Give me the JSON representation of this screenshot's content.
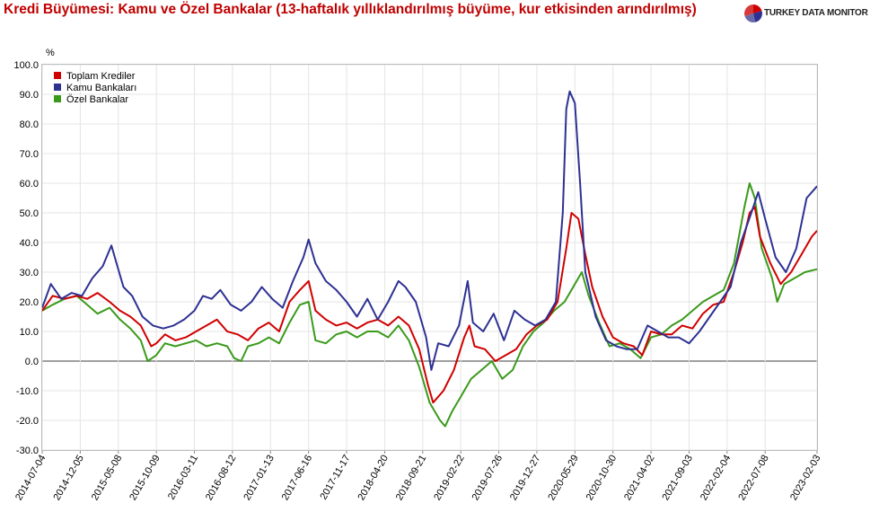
{
  "title": "Kredi Büyümesi: Kamu ve Özel Bankalar (13-haftalık yıllıklandırılmış büyüme, kur etkisinden arındırılmış)",
  "brand": "TURKEY DATA MONITOR",
  "colors": {
    "title": "#c00000",
    "toplam": "#d00000",
    "kamu": "#2e3192",
    "ozel": "#3a9a1a"
  },
  "chart_data": {
    "type": "line",
    "ylabel": "%",
    "ylim": [
      -30,
      100
    ],
    "yticks": [
      "100.0",
      "90.0",
      "80.0",
      "70.0",
      "60.0",
      "50.0",
      "40.0",
      "30.0",
      "20.0",
      "10.0",
      "0.0",
      "-10.0",
      "-20.0",
      "-30.0"
    ],
    "xticks": [
      "2014-07-04",
      "2014-12-05",
      "2015-05-08",
      "2015-10-09",
      "2016-03-11",
      "2016-08-12",
      "2017-01-13",
      "2017-06-16",
      "2017-11-17",
      "2018-04-20",
      "2018-09-21",
      "2019-02-22",
      "2019-07-26",
      "2019-12-27",
      "2020-05-29",
      "2020-10-30",
      "2021-04-02",
      "2021-09-03",
      "2022-02-04",
      "2022-07-08",
      "2023-02-03"
    ],
    "xrange": [
      "2014-07-04",
      "2023-02-03"
    ],
    "legend_position": "top-left",
    "grid": true,
    "series": [
      {
        "name": "Toplam Krediler",
        "color": "#d00000",
        "points": [
          [
            "2014-07-04",
            17
          ],
          [
            "2014-08-15",
            22
          ],
          [
            "2014-10-03",
            21
          ],
          [
            "2014-11-21",
            22
          ],
          [
            "2015-01-02",
            21
          ],
          [
            "2015-02-13",
            23
          ],
          [
            "2015-04-03",
            20
          ],
          [
            "2015-05-15",
            17
          ],
          [
            "2015-06-26",
            15
          ],
          [
            "2015-08-07",
            12
          ],
          [
            "2015-09-18",
            5
          ],
          [
            "2015-10-09",
            6
          ],
          [
            "2015-11-13",
            9
          ],
          [
            "2015-12-25",
            7
          ],
          [
            "2016-02-05",
            8
          ],
          [
            "2016-03-18",
            10
          ],
          [
            "2016-04-29",
            12
          ],
          [
            "2016-06-10",
            14
          ],
          [
            "2016-07-22",
            10
          ],
          [
            "2016-09-02",
            9
          ],
          [
            "2016-10-14",
            7
          ],
          [
            "2016-11-25",
            11
          ],
          [
            "2017-01-06",
            13
          ],
          [
            "2017-02-17",
            10
          ],
          [
            "2017-03-31",
            20
          ],
          [
            "2017-05-12",
            24
          ],
          [
            "2017-06-16",
            27
          ],
          [
            "2017-07-14",
            17
          ],
          [
            "2017-08-25",
            14
          ],
          [
            "2017-10-06",
            12
          ],
          [
            "2017-11-17",
            13
          ],
          [
            "2017-12-29",
            11
          ],
          [
            "2018-02-09",
            13
          ],
          [
            "2018-03-23",
            14
          ],
          [
            "2018-05-04",
            12
          ],
          [
            "2018-06-15",
            15
          ],
          [
            "2018-07-27",
            12
          ],
          [
            "2018-09-07",
            4
          ],
          [
            "2018-10-12",
            -8
          ],
          [
            "2018-11-02",
            -14
          ],
          [
            "2018-12-14",
            -10
          ],
          [
            "2019-01-25",
            -3
          ],
          [
            "2019-03-08",
            8
          ],
          [
            "2019-03-29",
            12
          ],
          [
            "2019-04-19",
            5
          ],
          [
            "2019-05-31",
            4
          ],
          [
            "2019-07-12",
            0
          ],
          [
            "2019-08-23",
            2
          ],
          [
            "2019-10-04",
            4
          ],
          [
            "2019-11-15",
            9
          ],
          [
            "2019-12-27",
            12
          ],
          [
            "2020-02-07",
            14
          ],
          [
            "2020-03-20",
            20
          ],
          [
            "2020-04-24",
            38
          ],
          [
            "2020-05-15",
            50
          ],
          [
            "2020-06-12",
            48
          ],
          [
            "2020-07-10",
            36
          ],
          [
            "2020-08-07",
            25
          ],
          [
            "2020-09-18",
            15
          ],
          [
            "2020-10-30",
            8
          ],
          [
            "2020-12-11",
            6
          ],
          [
            "2021-01-22",
            5
          ],
          [
            "2021-02-26",
            2
          ],
          [
            "2021-04-02",
            10
          ],
          [
            "2021-05-14",
            9
          ],
          [
            "2021-06-25",
            9
          ],
          [
            "2021-08-06",
            12
          ],
          [
            "2021-09-17",
            11
          ],
          [
            "2021-10-29",
            16
          ],
          [
            "2021-12-10",
            19
          ],
          [
            "2022-01-21",
            20
          ],
          [
            "2022-03-04",
            30
          ],
          [
            "2022-04-08",
            40
          ],
          [
            "2022-05-06",
            50
          ],
          [
            "2022-05-27",
            52
          ],
          [
            "2022-06-17",
            42
          ],
          [
            "2022-07-29",
            33
          ],
          [
            "2022-09-09",
            26
          ],
          [
            "2022-10-21",
            30
          ],
          [
            "2022-12-02",
            36
          ],
          [
            "2023-01-13",
            42
          ],
          [
            "2023-02-03",
            44
          ]
        ]
      },
      {
        "name": "Kamu Bankaları",
        "color": "#2e3192",
        "points": [
          [
            "2014-07-04",
            18
          ],
          [
            "2014-08-08",
            26
          ],
          [
            "2014-09-19",
            21
          ],
          [
            "2014-10-31",
            23
          ],
          [
            "2014-12-12",
            22
          ],
          [
            "2015-01-23",
            28
          ],
          [
            "2015-03-06",
            32
          ],
          [
            "2015-04-10",
            39
          ],
          [
            "2015-05-01",
            33
          ],
          [
            "2015-05-29",
            25
          ],
          [
            "2015-07-03",
            22
          ],
          [
            "2015-08-14",
            15
          ],
          [
            "2015-09-25",
            12
          ],
          [
            "2015-11-06",
            11
          ],
          [
            "2015-12-18",
            12
          ],
          [
            "2016-01-29",
            14
          ],
          [
            "2016-03-11",
            17
          ],
          [
            "2016-04-15",
            22
          ],
          [
            "2016-05-20",
            21
          ],
          [
            "2016-06-24",
            24
          ],
          [
            "2016-08-05",
            19
          ],
          [
            "2016-09-16",
            17
          ],
          [
            "2016-10-28",
            20
          ],
          [
            "2016-12-09",
            25
          ],
          [
            "2017-01-20",
            21
          ],
          [
            "2017-03-03",
            18
          ],
          [
            "2017-04-14",
            27
          ],
          [
            "2017-05-26",
            35
          ],
          [
            "2017-06-16",
            41
          ],
          [
            "2017-07-14",
            33
          ],
          [
            "2017-08-25",
            27
          ],
          [
            "2017-10-06",
            24
          ],
          [
            "2017-11-17",
            20
          ],
          [
            "2017-12-29",
            15
          ],
          [
            "2018-02-09",
            21
          ],
          [
            "2018-03-23",
            14
          ],
          [
            "2018-05-04",
            20
          ],
          [
            "2018-06-15",
            27
          ],
          [
            "2018-07-13",
            25
          ],
          [
            "2018-08-24",
            20
          ],
          [
            "2018-10-05",
            8
          ],
          [
            "2018-10-26",
            -3
          ],
          [
            "2018-11-23",
            6
          ],
          [
            "2019-01-04",
            5
          ],
          [
            "2019-02-15",
            12
          ],
          [
            "2019-03-22",
            27
          ],
          [
            "2019-04-12",
            13
          ],
          [
            "2019-05-24",
            10
          ],
          [
            "2019-07-05",
            16
          ],
          [
            "2019-08-16",
            7
          ],
          [
            "2019-09-27",
            17
          ],
          [
            "2019-11-08",
            14
          ],
          [
            "2019-12-20",
            12
          ],
          [
            "2020-01-31",
            14
          ],
          [
            "2020-03-13",
            20
          ],
          [
            "2020-04-10",
            50
          ],
          [
            "2020-04-24",
            85
          ],
          [
            "2020-05-08",
            91
          ],
          [
            "2020-05-29",
            87
          ],
          [
            "2020-06-19",
            60
          ],
          [
            "2020-07-10",
            30
          ],
          [
            "2020-08-21",
            15
          ],
          [
            "2020-10-02",
            7
          ],
          [
            "2020-11-13",
            5
          ],
          [
            "2020-12-25",
            4
          ],
          [
            "2021-02-05",
            4
          ],
          [
            "2021-03-19",
            12
          ],
          [
            "2021-04-30",
            10
          ],
          [
            "2021-06-11",
            8
          ],
          [
            "2021-07-23",
            8
          ],
          [
            "2021-09-03",
            6
          ],
          [
            "2021-10-15",
            10
          ],
          [
            "2021-11-26",
            15
          ],
          [
            "2022-01-07",
            20
          ],
          [
            "2022-02-18",
            25
          ],
          [
            "2022-04-01",
            40
          ],
          [
            "2022-05-13",
            50
          ],
          [
            "2022-06-10",
            57
          ],
          [
            "2022-07-08",
            48
          ],
          [
            "2022-08-19",
            35
          ],
          [
            "2022-09-30",
            30
          ],
          [
            "2022-11-11",
            38
          ],
          [
            "2022-12-23",
            55
          ],
          [
            "2023-02-03",
            59
          ]
        ]
      },
      {
        "name": "Özel Bankalar",
        "color": "#3a9a1a",
        "points": [
          [
            "2014-07-04",
            17
          ],
          [
            "2014-08-15",
            19
          ],
          [
            "2014-10-03",
            21
          ],
          [
            "2014-11-21",
            22
          ],
          [
            "2015-01-02",
            19
          ],
          [
            "2015-02-13",
            16
          ],
          [
            "2015-04-03",
            18
          ],
          [
            "2015-05-15",
            14
          ],
          [
            "2015-06-26",
            11
          ],
          [
            "2015-08-07",
            7
          ],
          [
            "2015-09-04",
            0
          ],
          [
            "2015-10-09",
            2
          ],
          [
            "2015-11-13",
            6
          ],
          [
            "2015-12-25",
            5
          ],
          [
            "2016-02-05",
            6
          ],
          [
            "2016-03-18",
            7
          ],
          [
            "2016-04-29",
            5
          ],
          [
            "2016-06-10",
            6
          ],
          [
            "2016-07-22",
            5
          ],
          [
            "2016-08-19",
            1
          ],
          [
            "2016-09-16",
            0
          ],
          [
            "2016-10-14",
            5
          ],
          [
            "2016-11-25",
            6
          ],
          [
            "2017-01-06",
            8
          ],
          [
            "2017-02-17",
            6
          ],
          [
            "2017-03-31",
            13
          ],
          [
            "2017-05-12",
            19
          ],
          [
            "2017-06-16",
            20
          ],
          [
            "2017-07-14",
            7
          ],
          [
            "2017-08-25",
            6
          ],
          [
            "2017-10-06",
            9
          ],
          [
            "2017-11-17",
            10
          ],
          [
            "2017-12-29",
            8
          ],
          [
            "2018-02-09",
            10
          ],
          [
            "2018-03-23",
            10
          ],
          [
            "2018-05-04",
            8
          ],
          [
            "2018-06-15",
            12
          ],
          [
            "2018-07-27",
            7
          ],
          [
            "2018-09-07",
            -2
          ],
          [
            "2018-10-19",
            -14
          ],
          [
            "2018-11-30",
            -20
          ],
          [
            "2018-12-21",
            -22
          ],
          [
            "2019-01-18",
            -17
          ],
          [
            "2019-02-22",
            -12
          ],
          [
            "2019-04-05",
            -6
          ],
          [
            "2019-05-17",
            -3
          ],
          [
            "2019-06-28",
            0
          ],
          [
            "2019-08-09",
            -6
          ],
          [
            "2019-09-20",
            -3
          ],
          [
            "2019-11-01",
            5
          ],
          [
            "2019-12-13",
            10
          ],
          [
            "2020-01-24",
            13
          ],
          [
            "2020-03-06",
            17
          ],
          [
            "2020-04-17",
            20
          ],
          [
            "2020-05-29",
            26
          ],
          [
            "2020-06-26",
            30
          ],
          [
            "2020-07-24",
            22
          ],
          [
            "2020-09-04",
            13
          ],
          [
            "2020-10-16",
            5
          ],
          [
            "2020-11-27",
            6
          ],
          [
            "2021-01-08",
            4
          ],
          [
            "2021-02-19",
            1
          ],
          [
            "2021-04-02",
            8
          ],
          [
            "2021-05-14",
            9
          ],
          [
            "2021-06-25",
            12
          ],
          [
            "2021-08-06",
            14
          ],
          [
            "2021-09-17",
            17
          ],
          [
            "2021-10-29",
            20
          ],
          [
            "2021-12-10",
            22
          ],
          [
            "2022-01-21",
            24
          ],
          [
            "2022-03-04",
            33
          ],
          [
            "2022-04-15",
            52
          ],
          [
            "2022-05-06",
            60
          ],
          [
            "2022-05-27",
            55
          ],
          [
            "2022-06-24",
            38
          ],
          [
            "2022-08-05",
            28
          ],
          [
            "2022-08-26",
            20
          ],
          [
            "2022-09-23",
            26
          ],
          [
            "2022-11-04",
            28
          ],
          [
            "2022-12-16",
            30
          ],
          [
            "2023-02-03",
            31
          ]
        ]
      }
    ]
  }
}
